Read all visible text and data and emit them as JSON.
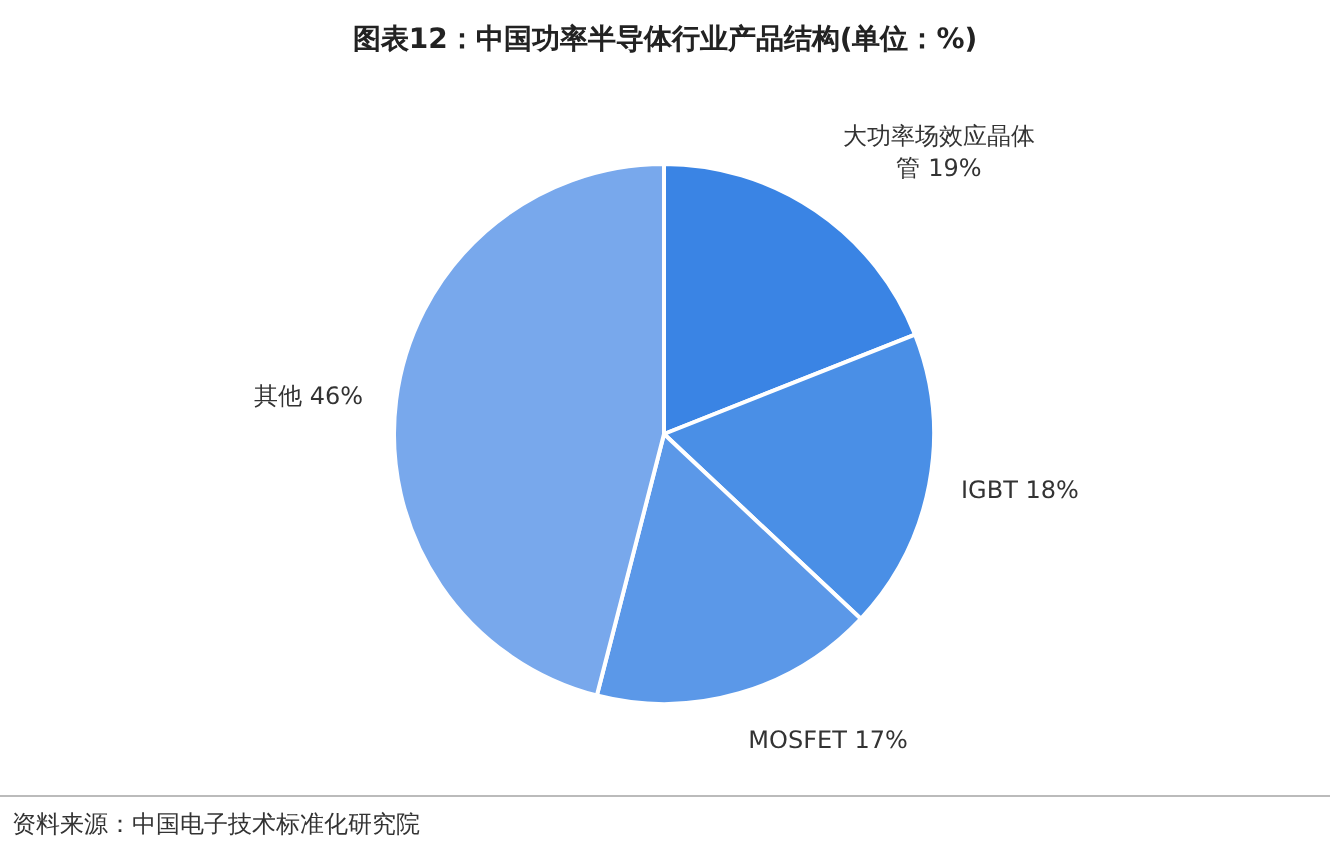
{
  "chart_data": {
    "type": "pie",
    "title": "图表12：中国功率半导体行业产品结构(单位：%)",
    "categories": [
      "大功率场效应晶体管",
      "IGBT",
      "MOSFET",
      "其他"
    ],
    "values": [
      19,
      18,
      17,
      46
    ],
    "colors": [
      "#3a84e4",
      "#4a8fe6",
      "#5b98e8",
      "#78a8ec"
    ],
    "value_labels": [
      "19%",
      "18%",
      "17%",
      "46%"
    ],
    "annotations": [
      "资料来源：中国电子技术标准化研究院"
    ]
  }
}
